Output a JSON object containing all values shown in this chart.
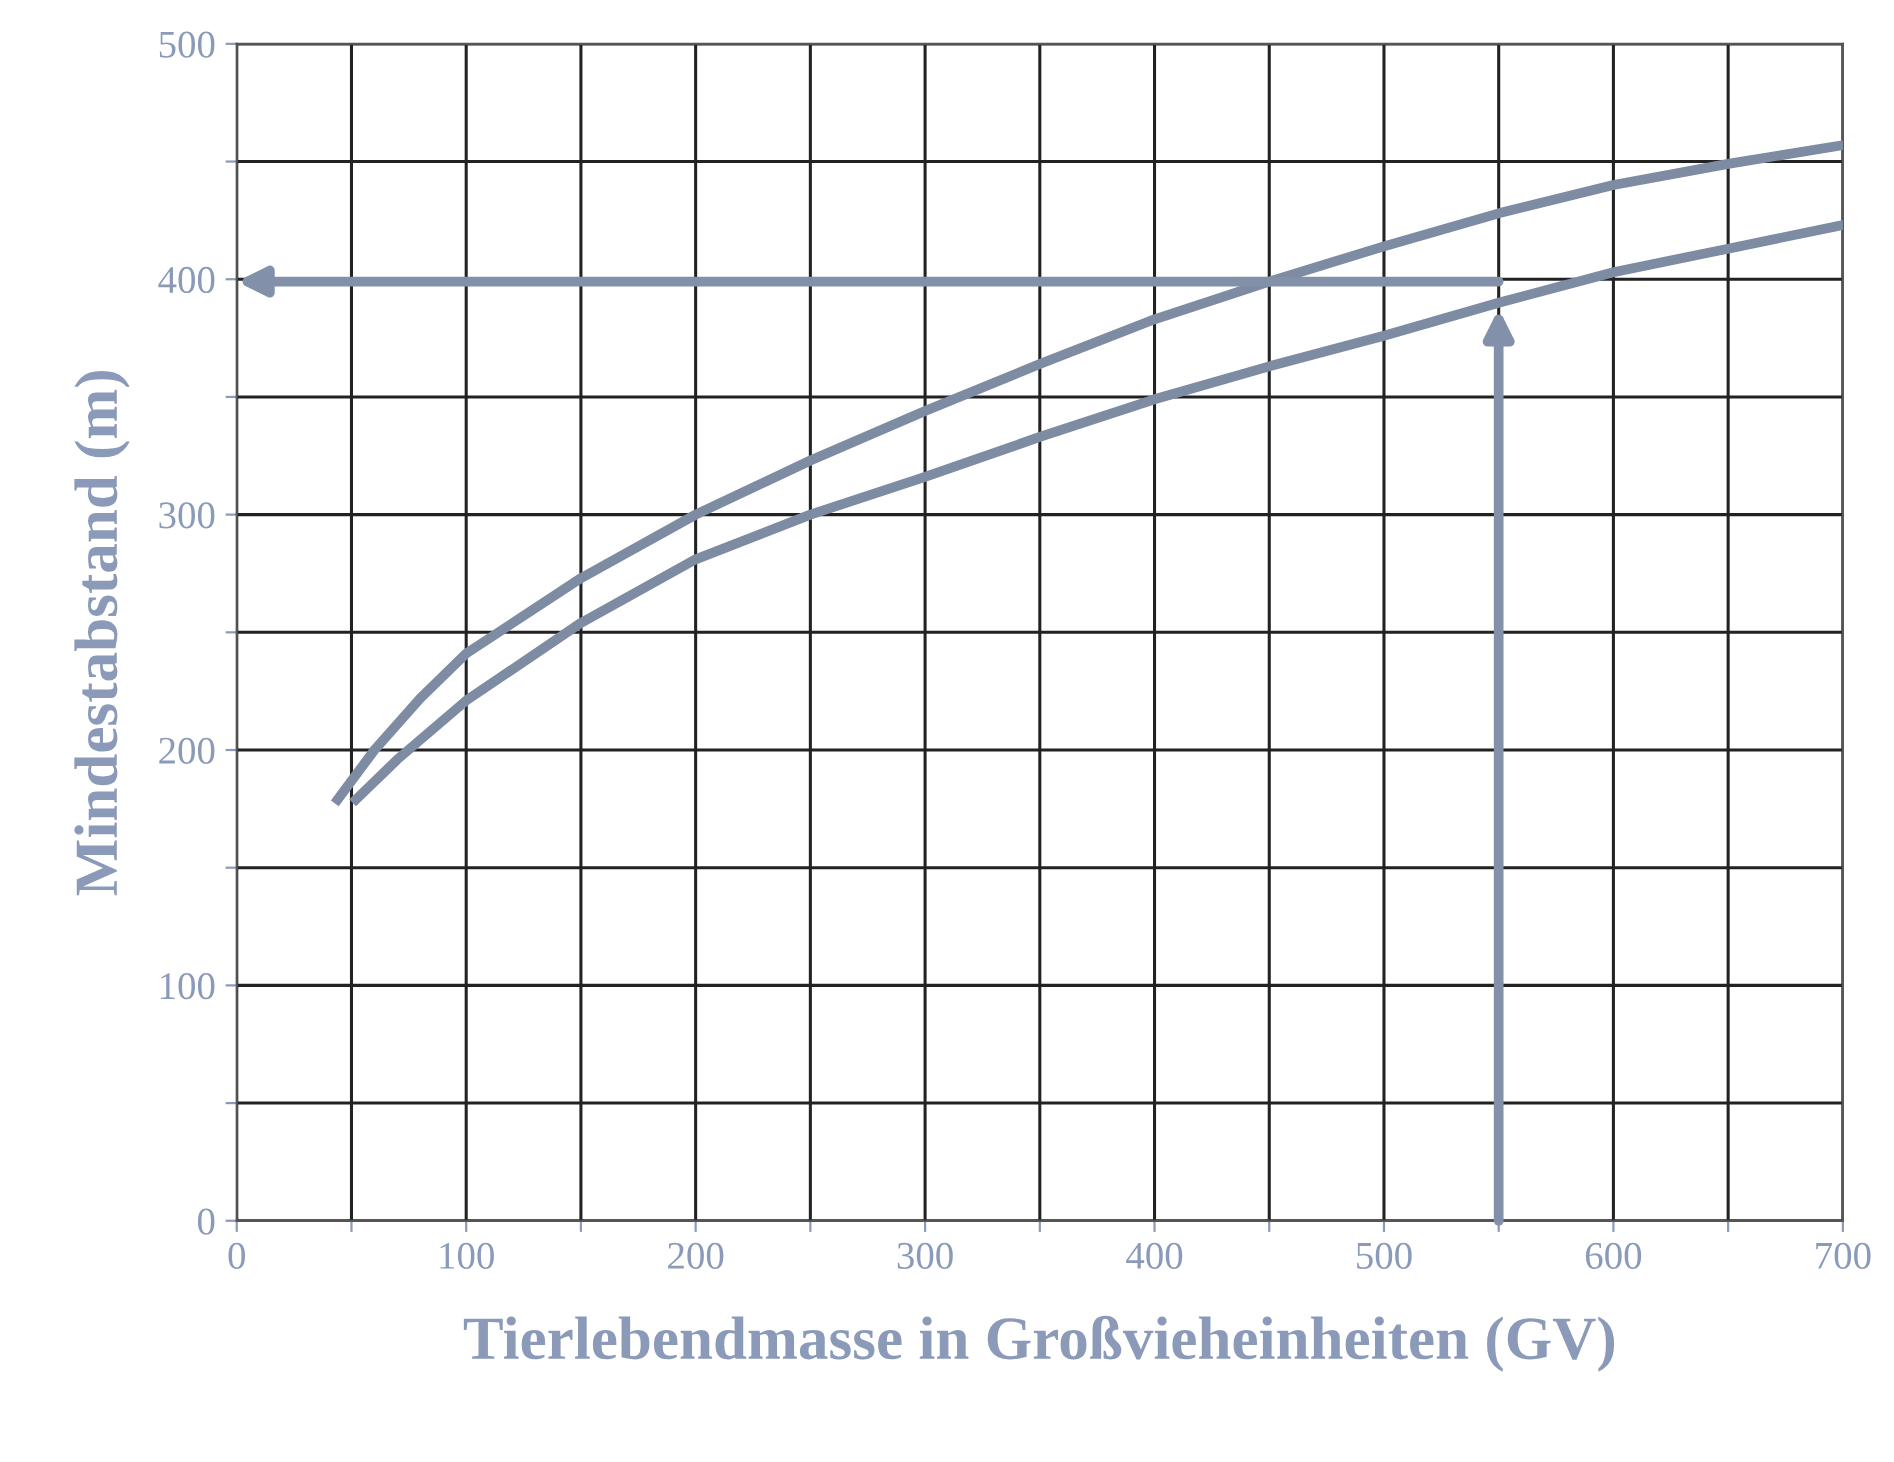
{
  "chart_data": {
    "type": "line",
    "xlabel": "Tierlebendmasse in Großvieheinheiten (GV)",
    "ylabel": "Mindestabstand (m)",
    "xlim": [
      0,
      700
    ],
    "ylim": [
      0,
      500
    ],
    "xticks": [
      0,
      {
        "value": 50,
        "label": null
      },
      100,
      {
        "value": 150,
        "label": null
      },
      200,
      {
        "value": 250,
        "label": null
      },
      300,
      {
        "value": 350,
        "label": null
      },
      400,
      {
        "value": 450,
        "label": null
      },
      500,
      {
        "value": 550,
        "label": null
      },
      600,
      {
        "value": 650,
        "label": null
      },
      700
    ],
    "yticks": [
      0,
      {
        "value": 50,
        "label": null
      },
      100,
      {
        "value": 150,
        "label": null
      },
      200,
      {
        "value": 250,
        "label": null
      },
      300,
      {
        "value": 350,
        "label": null
      },
      400,
      {
        "value": 450,
        "label": null
      },
      500
    ],
    "grid": true,
    "marker": "none",
    "line_style": "solid",
    "series": [
      {
        "color": "#7d8ba3",
        "x": [
          44,
          60,
          80,
          100,
          150,
          200,
          250,
          300,
          350,
          400,
          450,
          500,
          550,
          600,
          650,
          700
        ],
        "values": [
          179,
          200,
          222,
          241,
          273,
          300,
          323,
          344,
          364,
          383,
          399,
          414,
          428,
          440,
          449,
          457
        ]
      },
      {
        "color": "#7d8ba3",
        "x": [
          52,
          70,
          100,
          150,
          200,
          250,
          300,
          350,
          400,
          450,
          500,
          550,
          600,
          650,
          700
        ],
        "values": [
          179,
          196,
          221,
          254,
          281,
          300,
          316,
          333,
          349,
          363,
          376,
          390,
          403,
          413,
          423
        ]
      }
    ]
  }
}
